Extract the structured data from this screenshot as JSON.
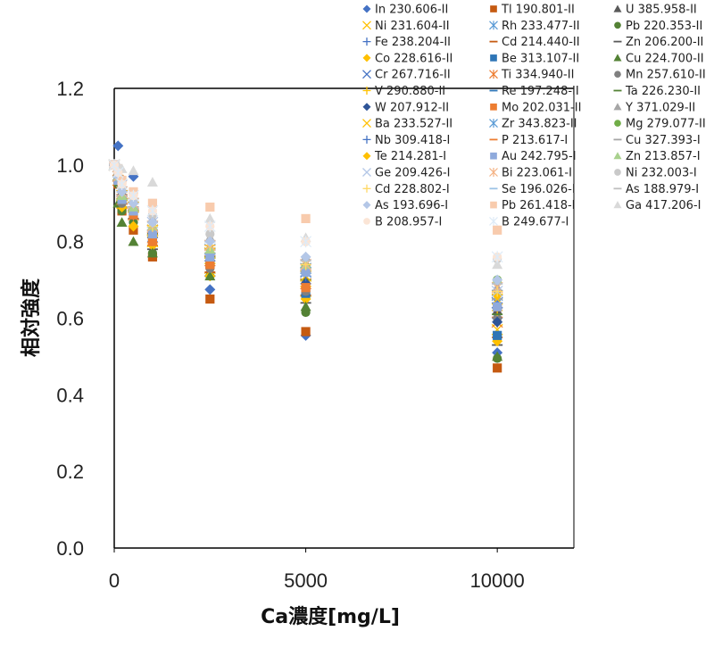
{
  "chart_data": {
    "type": "scatter",
    "title": "",
    "xlabel": "Ca濃度[mg/L]",
    "ylabel": "相対強度",
    "xlim": [
      0,
      12000
    ],
    "ylim": [
      0,
      1.2
    ],
    "xticks": [
      0,
      5000,
      10000
    ],
    "xtick_labels": [
      "0",
      "5000",
      "10000"
    ],
    "yticks": [
      0,
      0.2,
      0.4,
      0.6,
      0.8,
      1.0,
      1.2
    ],
    "ytick_labels": [
      "0.0",
      "0.2",
      "0.4",
      "0.6",
      "0.8",
      "1.0",
      "1.2"
    ],
    "grid": false,
    "legend_position": "top-right",
    "x": [
      0,
      100,
      200,
      500,
      1000,
      2500,
      5000,
      10000
    ],
    "series": [
      {
        "name": "In 230.606-II",
        "marker": "diamond",
        "color": "#4472c4",
        "values": [
          1.0,
          1.05,
          0.96,
          0.97,
          0.8,
          0.675,
          0.555,
          0.51
        ]
      },
      {
        "name": "Tl 190.801-II",
        "marker": "square",
        "color": "#c55a11",
        "values": [
          1.0,
          0.95,
          0.88,
          0.83,
          0.76,
          0.65,
          0.565,
          0.47
        ]
      },
      {
        "name": "U 385.958-II",
        "marker": "triangle",
        "color": "#595959",
        "values": [
          1.0,
          0.97,
          0.93,
          0.91,
          0.84,
          0.76,
          0.7,
          0.62
        ]
      },
      {
        "name": "Ni 231.604-II",
        "marker": "x",
        "color": "#ffc000",
        "values": [
          1.0,
          0.96,
          0.9,
          0.87,
          0.8,
          0.73,
          0.67,
          0.57
        ]
      },
      {
        "name": "Rh 233.477-II",
        "marker": "star",
        "color": "#5b9bd5",
        "values": [
          1.0,
          0.97,
          0.92,
          0.89,
          0.83,
          0.77,
          0.72,
          0.64
        ]
      },
      {
        "name": "Pb 220.353-II",
        "marker": "circle",
        "color": "#548235",
        "values": [
          1.0,
          0.95,
          0.88,
          0.85,
          0.77,
          0.71,
          0.615,
          0.495
        ]
      },
      {
        "name": "Fe 238.204-II",
        "marker": "plus",
        "color": "#4472c4",
        "values": [
          1.0,
          0.97,
          0.91,
          0.88,
          0.81,
          0.75,
          0.69,
          0.6
        ]
      },
      {
        "name": "Cd 214.440-II",
        "marker": "dash",
        "color": "#c55a11",
        "values": [
          1.0,
          0.96,
          0.9,
          0.86,
          0.79,
          0.72,
          0.66,
          0.55
        ]
      },
      {
        "name": "Zn 206.200-II",
        "marker": "dash",
        "color": "#595959",
        "values": [
          1.0,
          0.96,
          0.89,
          0.86,
          0.78,
          0.71,
          0.64,
          0.53
        ]
      },
      {
        "name": "Co 228.616-II",
        "marker": "diamond",
        "color": "#ffc000",
        "values": [
          1.0,
          0.96,
          0.89,
          0.84,
          0.79,
          0.71,
          0.65,
          0.54
        ]
      },
      {
        "name": "Be 313.107-II",
        "marker": "square",
        "color": "#2e75b6",
        "values": [
          1.0,
          0.96,
          0.91,
          0.88,
          0.81,
          0.74,
          0.665,
          0.555
        ]
      },
      {
        "name": "Cu 224.700-II",
        "marker": "triangle",
        "color": "#548235",
        "values": [
          1.0,
          0.9,
          0.85,
          0.8,
          0.77,
          0.71,
          0.63,
          0.5
        ]
      },
      {
        "name": "Cr 267.716-II",
        "marker": "x",
        "color": "#4472c4",
        "values": [
          1.0,
          0.97,
          0.92,
          0.89,
          0.83,
          0.77,
          0.71,
          0.64
        ]
      },
      {
        "name": "Ti 334.940-II",
        "marker": "star",
        "color": "#ed7d31",
        "values": [
          1.0,
          0.96,
          0.91,
          0.87,
          0.81,
          0.75,
          0.69,
          0.59
        ]
      },
      {
        "name": "Mn 257.610-II",
        "marker": "circle",
        "color": "#808080",
        "values": [
          1.0,
          0.96,
          0.9,
          0.87,
          0.8,
          0.73,
          0.67,
          0.6
        ]
      },
      {
        "name": "V 290.880-II",
        "marker": "plus",
        "color": "#ffc000",
        "values": [
          1.0,
          0.97,
          0.92,
          0.89,
          0.82,
          0.76,
          0.7,
          0.62
        ]
      },
      {
        "name": "Re 197.248-II",
        "marker": "dash",
        "color": "#2e75b6",
        "values": [
          1.0,
          0.97,
          0.92,
          0.89,
          0.83,
          0.78,
          0.73,
          0.66
        ]
      },
      {
        "name": "Ta 226.230-II",
        "marker": "dash",
        "color": "#548235",
        "values": [
          1.0,
          0.97,
          0.91,
          0.88,
          0.82,
          0.76,
          0.7,
          0.61
        ]
      },
      {
        "name": "W 207.912-II",
        "marker": "diamond",
        "color": "#2f5597",
        "values": [
          1.0,
          0.97,
          0.92,
          0.88,
          0.82,
          0.75,
          0.69,
          0.59
        ]
      },
      {
        "name": "Mo 202.031-II",
        "marker": "square",
        "color": "#ed7d31",
        "values": [
          1.0,
          0.96,
          0.91,
          0.87,
          0.8,
          0.74,
          0.68,
          0.63
        ]
      },
      {
        "name": "Y 371.029-II",
        "marker": "triangle",
        "color": "#a6a6a6",
        "values": [
          1.0,
          0.98,
          0.94,
          0.92,
          0.86,
          0.81,
          0.76,
          0.68
        ]
      },
      {
        "name": "Ba 233.527-II",
        "marker": "x",
        "color": "#ffc000",
        "values": [
          1.0,
          0.97,
          0.92,
          0.89,
          0.83,
          0.77,
          0.71,
          0.65
        ]
      },
      {
        "name": "Zr 343.823-II",
        "marker": "star",
        "color": "#5b9bd5",
        "values": [
          1.0,
          0.97,
          0.93,
          0.9,
          0.84,
          0.78,
          0.73,
          0.66
        ]
      },
      {
        "name": "Mg 279.077-II",
        "marker": "circle",
        "color": "#70ad47",
        "values": [
          1.0,
          0.96,
          0.91,
          0.88,
          0.83,
          0.76,
          0.735,
          0.7
        ]
      },
      {
        "name": "Nb 309.418-I",
        "marker": "plus",
        "color": "#4472c4",
        "values": [
          1.0,
          0.97,
          0.92,
          0.89,
          0.83,
          0.77,
          0.71,
          0.64
        ]
      },
      {
        "name": "P 213.617-I",
        "marker": "dash",
        "color": "#ed7d31",
        "values": [
          1.0,
          0.97,
          0.93,
          0.9,
          0.84,
          0.79,
          0.74,
          0.67
        ]
      },
      {
        "name": "Cu 327.393-I",
        "marker": "dash",
        "color": "#a6a6a6",
        "values": [
          1.0,
          0.97,
          0.92,
          0.89,
          0.83,
          0.77,
          0.72,
          0.65
        ]
      },
      {
        "name": "Te 214.281-I",
        "marker": "diamond",
        "color": "#ffc000",
        "values": [
          1.0,
          0.97,
          0.93,
          0.9,
          0.84,
          0.78,
          0.73,
          0.66
        ]
      },
      {
        "name": "Au 242.795-I",
        "marker": "square",
        "color": "#8faadc",
        "values": [
          1.0,
          0.96,
          0.91,
          0.88,
          0.82,
          0.76,
          0.72,
          0.63
        ]
      },
      {
        "name": "Zn 213.857-I",
        "marker": "triangle",
        "color": "#a9d18e",
        "values": [
          1.0,
          0.97,
          0.92,
          0.89,
          0.84,
          0.78,
          0.74,
          0.7
        ]
      },
      {
        "name": "Ge 209.426-I",
        "marker": "x",
        "color": "#b4c7e7",
        "values": [
          1.0,
          0.97,
          0.93,
          0.9,
          0.85,
          0.79,
          0.74,
          0.67
        ]
      },
      {
        "name": "Bi 223.061-I",
        "marker": "star",
        "color": "#f4b183",
        "values": [
          1.0,
          0.97,
          0.93,
          0.9,
          0.84,
          0.79,
          0.74,
          0.68
        ]
      },
      {
        "name": "Ni 232.003-I",
        "marker": "circle",
        "color": "#c9c9c9",
        "values": [
          1.0,
          0.98,
          0.94,
          0.91,
          0.87,
          0.82,
          0.8,
          0.755
        ]
      },
      {
        "name": "Cd 228.802-I",
        "marker": "plus",
        "color": "#ffd966",
        "values": [
          1.0,
          0.97,
          0.93,
          0.9,
          0.84,
          0.79,
          0.74,
          0.67
        ]
      },
      {
        "name": "Se 196.026-I",
        "marker": "dash",
        "color": "#9dc3e6",
        "values": [
          1.0,
          0.97,
          0.93,
          0.9,
          0.85,
          0.8,
          0.75,
          0.69
        ]
      },
      {
        "name": "As 188.979-I",
        "marker": "dash",
        "color": "#bfbfbf",
        "values": [
          1.0,
          0.97,
          0.93,
          0.9,
          0.85,
          0.8,
          0.75,
          0.69
        ]
      },
      {
        "name": "As 193.696-I",
        "marker": "diamond",
        "color": "#b4c7e7",
        "values": [
          1.0,
          0.97,
          0.93,
          0.9,
          0.85,
          0.8,
          0.76,
          0.7
        ]
      },
      {
        "name": "Pb 261.418-I",
        "marker": "square",
        "color": "#f8cbad",
        "values": [
          1.0,
          0.99,
          0.96,
          0.93,
          0.9,
          0.89,
          0.86,
          0.83
        ]
      },
      {
        "name": "Ga 417.206-I",
        "marker": "triangle",
        "color": "#d9d9d9",
        "values": [
          1.0,
          1.0,
          0.99,
          0.985,
          0.955,
          0.86,
          0.81,
          0.74
        ]
      },
      {
        "name": "B 208.957-I",
        "marker": "circle",
        "color": "#fbe5d6",
        "values": [
          1.0,
          0.98,
          0.95,
          0.92,
          0.88,
          0.84,
          0.8,
          0.76
        ]
      },
      {
        "name": "B 249.677-I",
        "marker": "star",
        "color": "#deebf7",
        "values": [
          1.0,
          0.98,
          0.95,
          0.92,
          0.88,
          0.84,
          0.8,
          0.76
        ]
      }
    ]
  }
}
